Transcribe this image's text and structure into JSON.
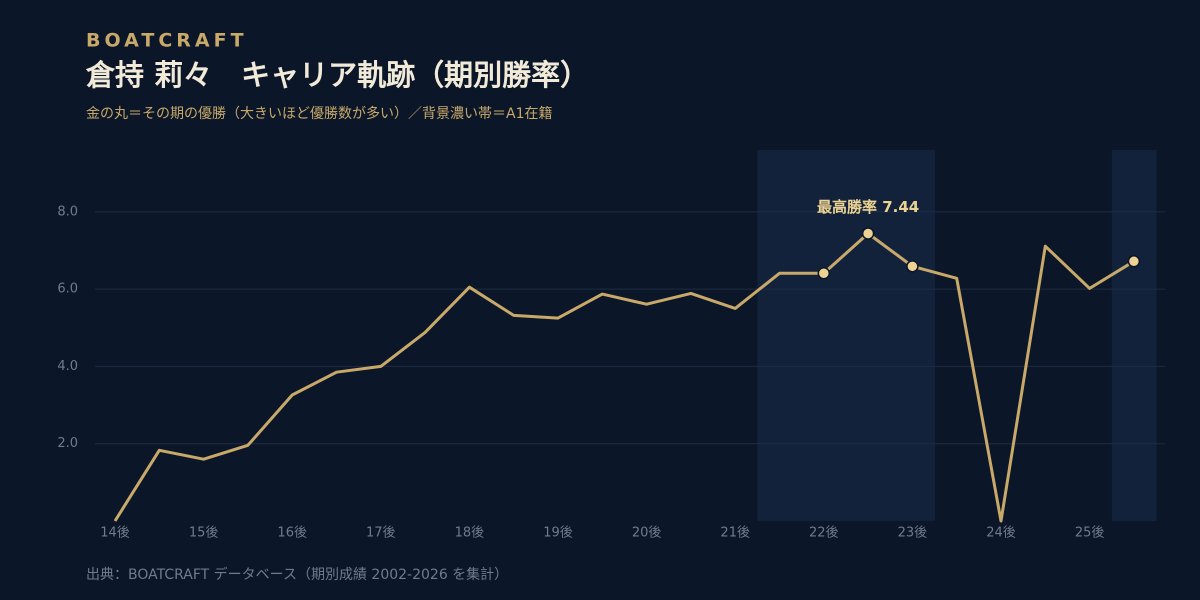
{
  "brand": "BOATCRAFT",
  "chart_data": {
    "type": "line",
    "title": "倉持 莉々　キャリア軌跡（期別勝率）",
    "subtitle": "金の丸＝その期の優勝（大きいほど優勝数が多い）／背景濃い帯＝A1在籍",
    "categories": [
      "14後",
      null,
      "15後",
      null,
      "16後",
      null,
      "17後",
      null,
      "18後",
      null,
      "19後",
      null,
      "20後",
      null,
      "21後",
      null,
      "22後",
      null,
      "23後",
      null,
      "24後",
      null,
      "25後",
      null
    ],
    "values": [
      0,
      1.83,
      1.6,
      1.96,
      3.26,
      3.85,
      4.0,
      4.88,
      6.05,
      5.32,
      5.25,
      5.87,
      5.61,
      5.89,
      5.5,
      6.41,
      6.41,
      7.44,
      6.59,
      6.28,
      0,
      7.11,
      6.02,
      6.72
    ],
    "wins": [
      0,
      0,
      0,
      0,
      0,
      0,
      0,
      0,
      0,
      0,
      0,
      0,
      0,
      0,
      0,
      0,
      1,
      1,
      1,
      0,
      0,
      0,
      0,
      1
    ],
    "a1_categories": [
      15,
      16,
      17,
      18,
      23
    ],
    "color": "#c8a96a",
    "win_color": "#ecd393",
    "band_color": "#13223b",
    "annotation": "最高勝率 7.44",
    "ylim": [
      0,
      9.6
    ],
    "yticks": [
      {
        "value": 2,
        "label": "2.0"
      },
      {
        "value": 4,
        "label": "4.0"
      },
      {
        "value": 6,
        "label": "6.0"
      },
      {
        "value": 8,
        "label": "8.0"
      }
    ],
    "grid": true,
    "source": "出典：BOATCRAFT データベース（期別成績 2002-2026 を集計）"
  }
}
